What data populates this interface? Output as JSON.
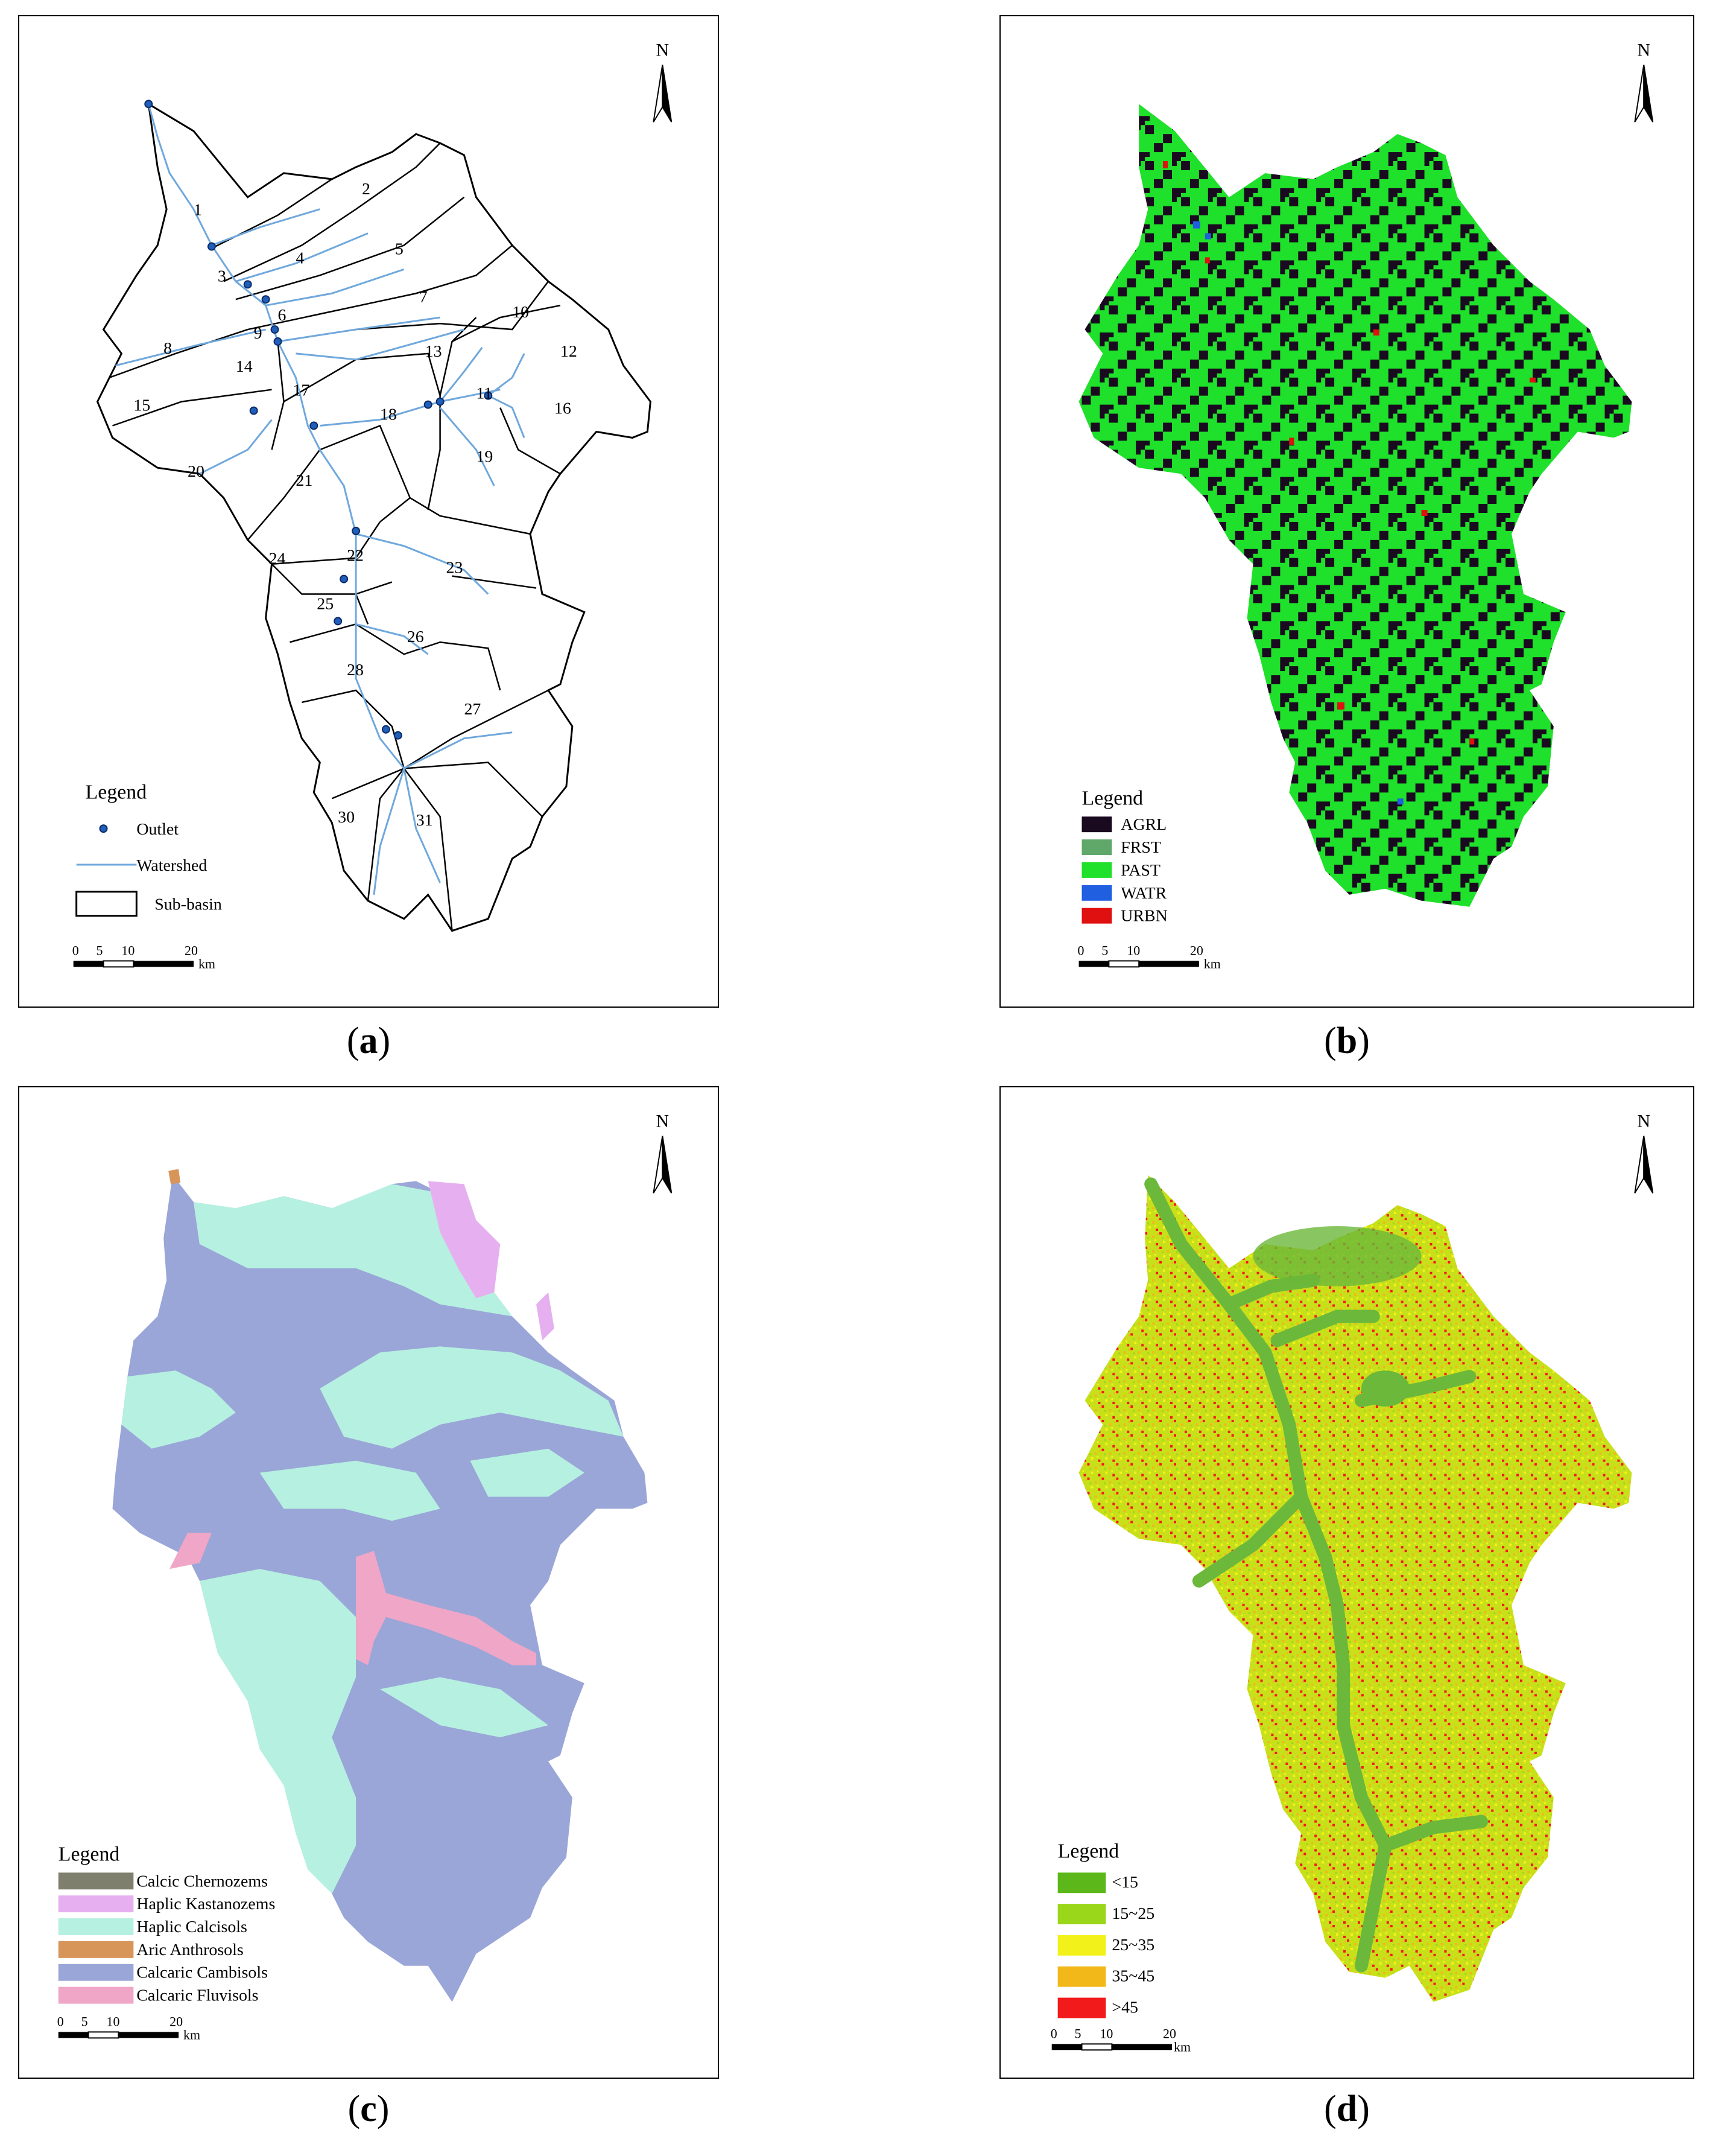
{
  "panels": {
    "a": {
      "caption_letter": "a",
      "north_label": "N",
      "legend_title": "Legend",
      "legend": [
        "Outlet",
        "Watershed",
        "Sub-basin"
      ],
      "scale_ticks": [
        "0",
        "5",
        "10",
        "20"
      ],
      "scale_unit": "km",
      "subbasins": [
        "1",
        "2",
        "3",
        "4",
        "5",
        "6",
        "7",
        "8",
        "9",
        "10",
        "11",
        "12",
        "13",
        "14",
        "15",
        "16",
        "17",
        "18",
        "19",
        "20",
        "21",
        "22",
        "23",
        "24",
        "25",
        "26",
        "27",
        "28",
        "30",
        "31"
      ],
      "colors": {
        "outlet": "#1f5fb8",
        "watershed": "#6fa8dc",
        "subbasin_border": "#000000"
      }
    },
    "b": {
      "caption_letter": "b",
      "north_label": "N",
      "legend_title": "Legend",
      "legend": [
        {
          "label": "AGRL",
          "color": "#1a0a1f"
        },
        {
          "label": "FRST",
          "color": "#5fa86a"
        },
        {
          "label": "PAST",
          "color": "#1fe02a"
        },
        {
          "label": "WATR",
          "color": "#1f5fe0"
        },
        {
          "label": "URBN",
          "color": "#e01010"
        }
      ],
      "scale_ticks": [
        "0",
        "5",
        "10",
        "20"
      ],
      "scale_unit": "km"
    },
    "c": {
      "caption_letter": "c",
      "north_label": "N",
      "legend_title": "Legend",
      "legend": [
        {
          "label": "Calcic Chernozems",
          "color": "#7f7f6e"
        },
        {
          "label": "Haplic Kastanozems",
          "color": "#e6b0f0"
        },
        {
          "label": "Haplic Calcisols",
          "color": "#b6f0e0"
        },
        {
          "label": "Aric Anthrosols",
          "color": "#d8955a"
        },
        {
          "label": "Calcaric Cambisols",
          "color": "#9aa6d8"
        },
        {
          "label": "Calcaric Fluvisols",
          "color": "#f0a6c6"
        }
      ],
      "scale_ticks": [
        "0",
        "5",
        "10",
        "20"
      ],
      "scale_unit": "km"
    },
    "d": {
      "caption_letter": "d",
      "north_label": "N",
      "legend_title": "Legend",
      "legend": [
        {
          "label": "<15",
          "color": "#5cb81a"
        },
        {
          "label": "15~25",
          "color": "#9ad61a"
        },
        {
          "label": "25~35",
          "color": "#f2f21a"
        },
        {
          "label": "35~45",
          "color": "#f2b81a"
        },
        {
          "label": ">45",
          "color": "#f21a1a"
        }
      ],
      "scale_ticks": [
        "0",
        "5",
        "10",
        "20"
      ],
      "scale_unit": "km"
    }
  }
}
